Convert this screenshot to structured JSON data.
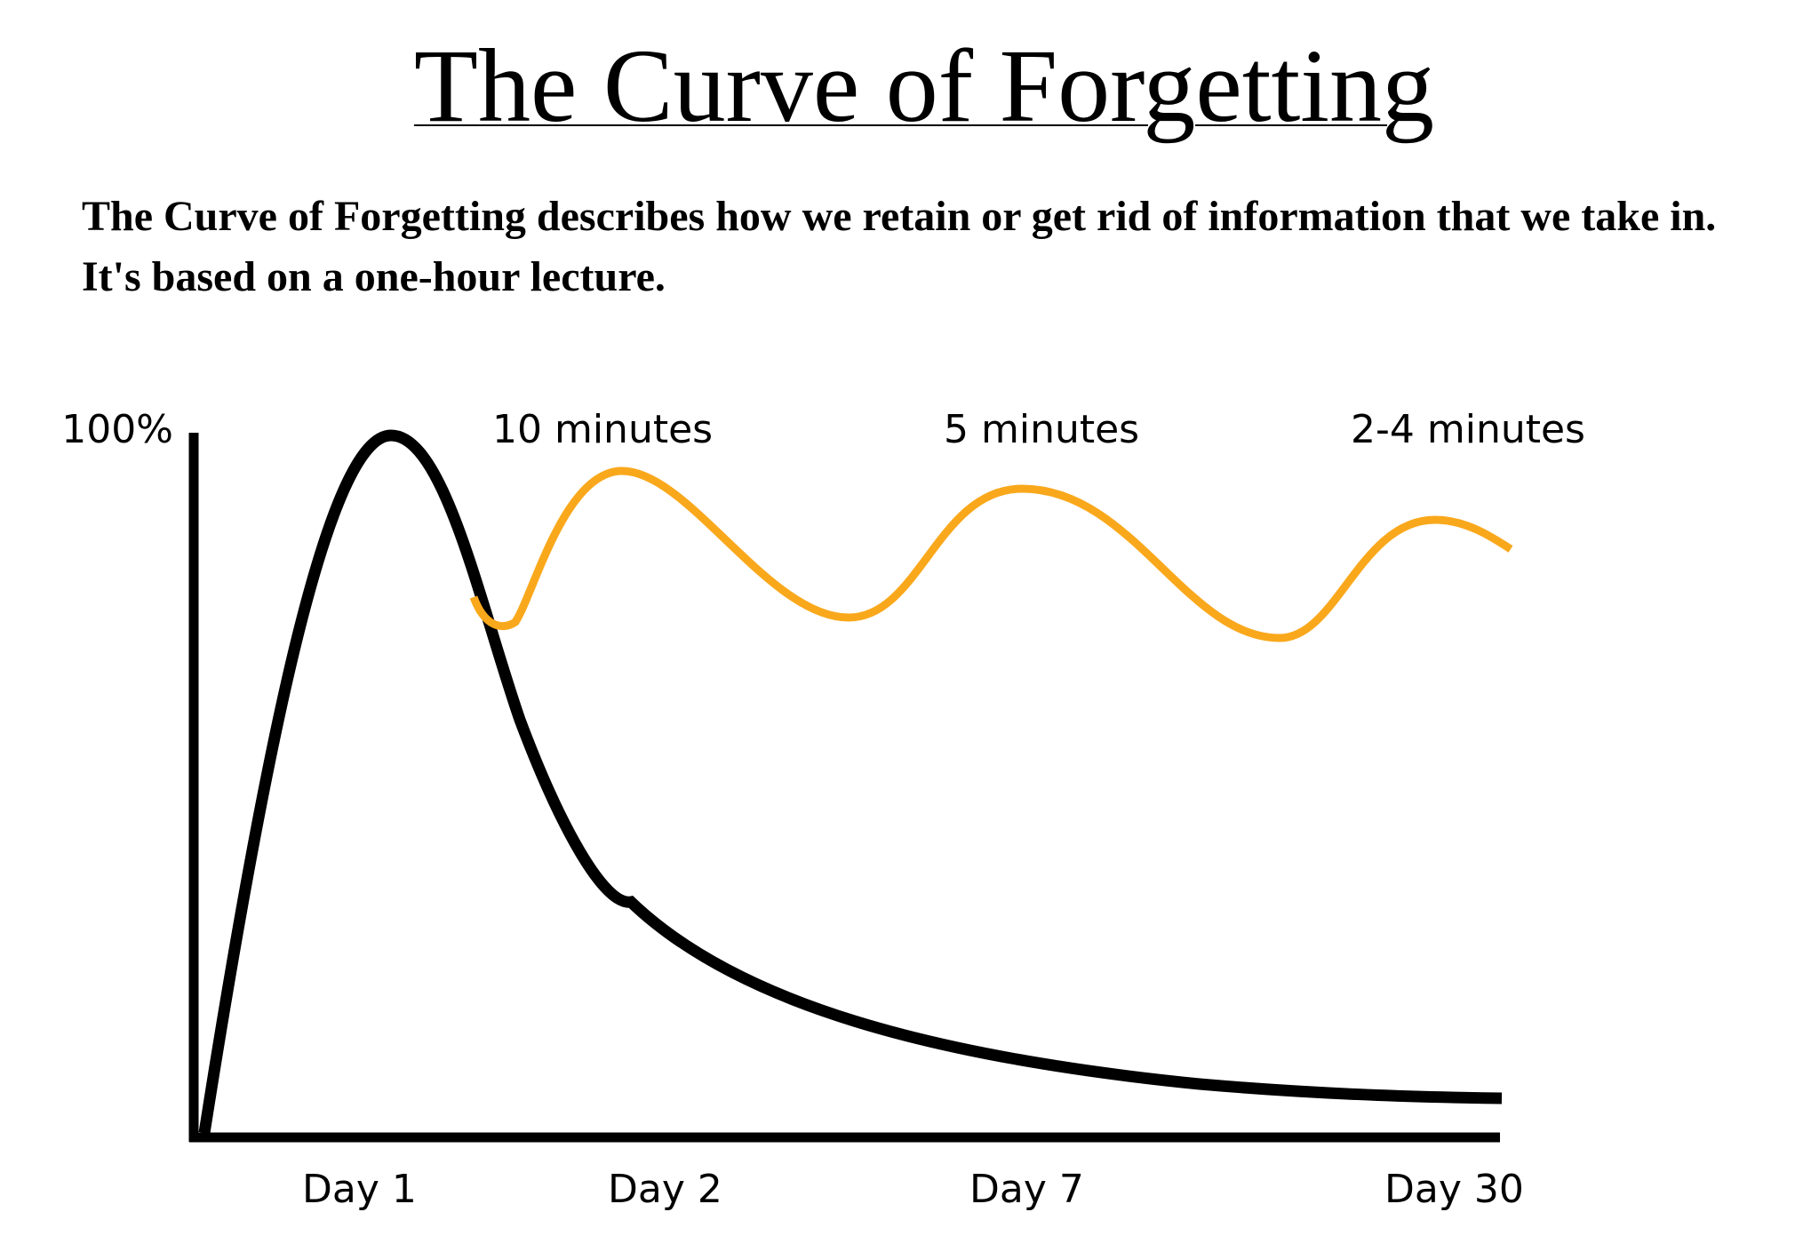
{
  "title": "The Curve of Forgetting",
  "description": [
    "The Curve of Forgetting describes how we retain or get rid of information that we take in.",
    "It's based on a one-hour lecture."
  ],
  "axis": {
    "y_top_label": "100%",
    "x_labels": [
      "Day 1",
      "Day 2",
      "Day 7",
      "Day 30"
    ]
  },
  "review_labels": [
    "10 minutes",
    "5 minutes",
    "2-4 minutes"
  ],
  "colors": {
    "forgetting_curve": "#000000",
    "review_curve": "#F9A81C",
    "axes": "#000000"
  }
}
